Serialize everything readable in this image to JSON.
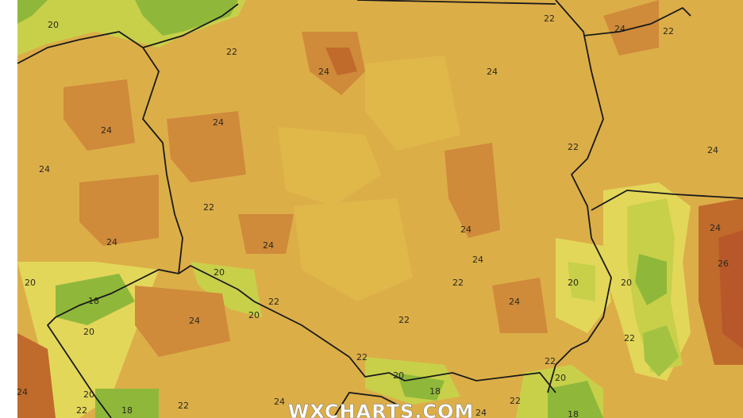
{
  "map": {
    "watermark": "WXCHARTS.COM",
    "colors": {
      "t18": "#8fb83a",
      "t20": "#c8d04a",
      "t21": "#e3d75a",
      "t22": "#e0b84a",
      "t23": "#d9a040",
      "t24": "#cf8a3a",
      "t25": "#c06a2c",
      "t26": "#b8582a",
      "border": "#1a1a1a"
    },
    "contour_labels": [
      "20",
      "22",
      "22",
      "24",
      "22",
      "24",
      "24",
      "24",
      "24",
      "24",
      "22",
      "24",
      "22",
      "24",
      "24",
      "24",
      "24",
      "24",
      "26",
      "20",
      "20",
      "22",
      "20",
      "20",
      "18",
      "22",
      "24",
      "20",
      "24",
      "22",
      "20",
      "22",
      "22",
      "22",
      "20",
      "20",
      "20",
      "18",
      "24",
      "22",
      "24",
      "24",
      "22",
      "18",
      "22",
      "18"
    ]
  }
}
